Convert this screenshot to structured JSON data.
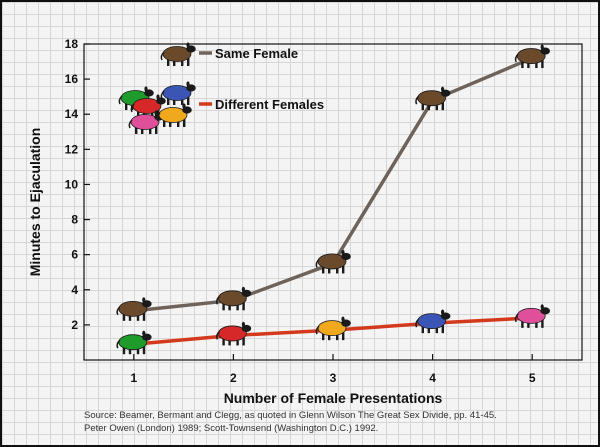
{
  "chart_data": {
    "type": "line",
    "x": [
      1,
      2,
      3,
      4,
      5
    ],
    "xlabel": "Number of Female Presentations",
    "ylabel": "Minutes to Ejaculation",
    "xlim": [
      0.5,
      5.5
    ],
    "ylim": [
      0,
      18
    ],
    "x_ticks": [
      1,
      2,
      3,
      4,
      5
    ],
    "y_ticks": [
      2,
      4,
      6,
      8,
      10,
      12,
      14,
      16,
      18
    ],
    "grid": true,
    "legend_position": "top-left",
    "series": [
      {
        "name": "Same Female",
        "values": [
          2.8,
          3.4,
          5.5,
          14.8,
          17.2
        ],
        "color": "#6e635a",
        "marker_colors": [
          "#6b4a2c",
          "#6b4a2c",
          "#6b4a2c",
          "#6b4a2c",
          "#6b4a2c"
        ],
        "marker_icon": "sheep-icon"
      },
      {
        "name": "Different Females",
        "values": [
          0.9,
          1.4,
          1.7,
          2.1,
          2.4
        ],
        "color": "#d3391c",
        "marker_colors": [
          "#1e9b2a",
          "#d62828",
          "#f0a81c",
          "#3a55b4",
          "#e0509a"
        ],
        "marker_icon": "sheep-icon"
      }
    ],
    "legend_icon_colors": {
      "same": "#6b4a2c",
      "different": [
        "#1e9b2a",
        "#3a55b4",
        "#d62828",
        "#e0509a",
        "#f0a81c"
      ]
    }
  },
  "source": {
    "line1": "Source: Beamer, Bermant and Clegg, as quoted in Glenn Wilson  The Great Sex Divide, pp. 41-45.",
    "line2": "Peter Owen (London) 1989; Scott-Townsend (Washington D.C.) 1992."
  }
}
